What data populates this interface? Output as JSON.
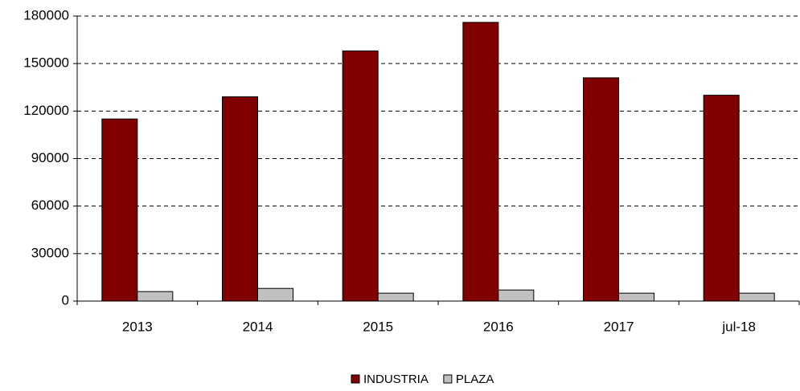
{
  "chart_data": {
    "type": "bar",
    "categories": [
      "2013",
      "2014",
      "2015",
      "2016",
      "2017",
      "jul-18"
    ],
    "series": [
      {
        "name": "INDUSTRIA",
        "color": "#800000",
        "values": [
          115000,
          129000,
          158000,
          176000,
          141000,
          130000
        ]
      },
      {
        "name": "PLAZA",
        "color": "#c0c0c0",
        "values": [
          6000,
          8000,
          5000,
          7000,
          5000,
          5000
        ]
      }
    ],
    "ylim": [
      0,
      180000
    ],
    "yticks": [
      0,
      30000,
      60000,
      90000,
      120000,
      150000,
      180000
    ],
    "grid": true,
    "legend": "bottom"
  }
}
